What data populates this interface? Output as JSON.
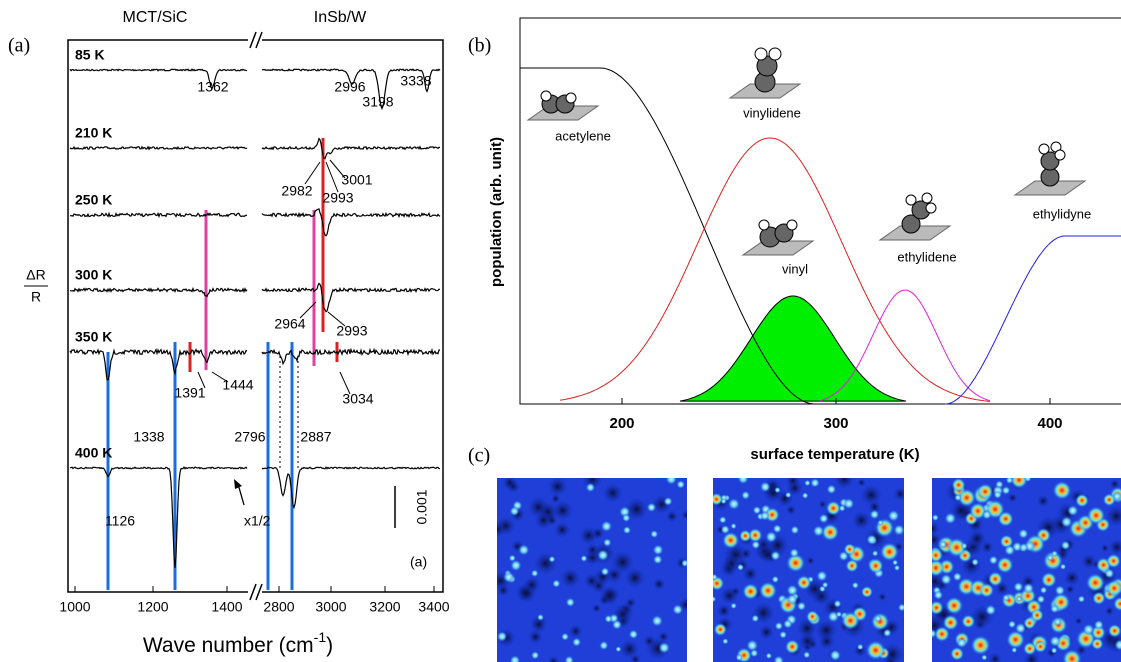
{
  "panel_a": {
    "label": "(a)",
    "inner_label": "(a)",
    "detectors": [
      "MCT/SiC",
      "InSb/W"
    ],
    "rows": [
      {
        "temperature": "85 K",
        "peaks": [
          "1362",
          "2996",
          "3198",
          "3338"
        ]
      },
      {
        "temperature": "210 K",
        "peaks": [
          "2982",
          "2993",
          "3001"
        ]
      },
      {
        "temperature": "250 K",
        "peaks": []
      },
      {
        "temperature": "300 K",
        "peaks": [
          "2964",
          "2993"
        ]
      },
      {
        "temperature": "350 K",
        "peaks": [
          "1391",
          "1444",
          "3034"
        ]
      },
      {
        "temperature": "400 K",
        "peaks": [
          "1338",
          "2796",
          "2887",
          "1126"
        ]
      }
    ],
    "y_label_top": "ΔR",
    "y_label_bottom": "R",
    "scale_bar": "0.001",
    "factor": "x1/2",
    "x_ticks": [
      "1000",
      "1200",
      "1400",
      "2800",
      "3000",
      "3200",
      "3400"
    ],
    "x_label": "Wave number (cm",
    "x_label_sup": "-1",
    "x_label_end": ")"
  },
  "panel_b": {
    "label": "(b)",
    "y_label": "population (arb. unit)",
    "x_label": "surface temperature (K)",
    "x_ticks": [
      "200",
      "300",
      "400"
    ],
    "species": [
      "acetylene",
      "vinylidene",
      "vinyl",
      "ethylidene",
      "ethylidyne"
    ]
  },
  "panel_c": {
    "label": "(c)"
  }
}
